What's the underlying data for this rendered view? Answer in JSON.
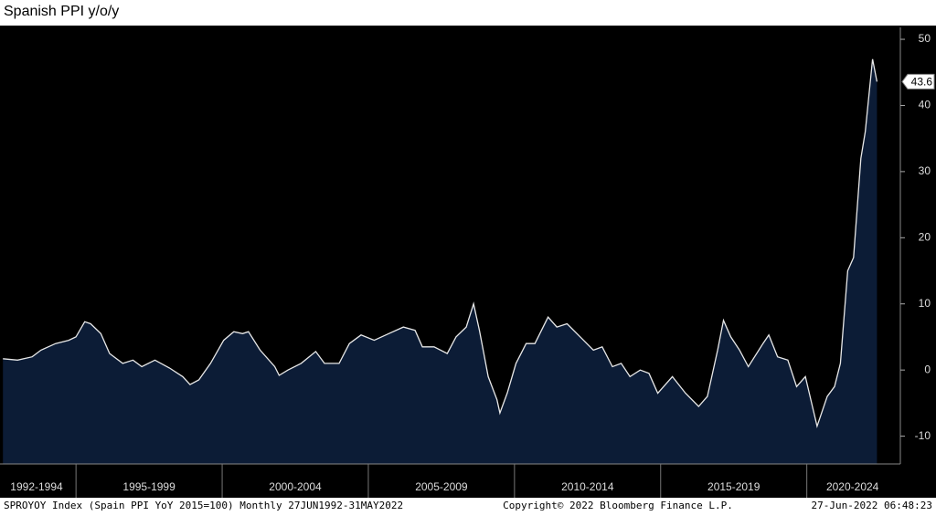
{
  "chart_data": {
    "type": "area",
    "title": "Spanish PPI y/o/y",
    "footer_left": "SPROYOY Index (Spain PPI YoY 2015=100)  Monthly 27JUN1992-31MAY2022",
    "footer_center": "Copyright© 2022 Bloomberg Finance L.P.",
    "footer_right": "27-Jun-2022 06:48:23",
    "x": [
      1992.5,
      1993.0,
      1993.5,
      1993.8,
      1994.3,
      1994.75,
      1995.0,
      1995.3,
      1995.5,
      1995.85,
      1996.15,
      1996.6,
      1996.95,
      1997.25,
      1997.7,
      1998.2,
      1998.65,
      1998.9,
      1999.2,
      1999.6,
      2000.05,
      2000.4,
      2000.7,
      2000.9,
      2001.3,
      2001.8,
      2001.95,
      2002.25,
      2002.7,
      2003.2,
      2003.5,
      2004.0,
      2004.35,
      2004.75,
      2005.2,
      2005.7,
      2006.2,
      2006.6,
      2006.85,
      2007.25,
      2007.7,
      2008.0,
      2008.35,
      2008.6,
      2008.8,
      2009.1,
      2009.4,
      2009.5,
      2009.75,
      2010.05,
      2010.4,
      2010.7,
      2011.15,
      2011.45,
      2011.8,
      2012.25,
      2012.7,
      2013.0,
      2013.35,
      2013.65,
      2013.95,
      2014.3,
      2014.6,
      2014.9,
      2015.4,
      2015.85,
      2016.3,
      2016.6,
      2016.95,
      2017.15,
      2017.4,
      2017.7,
      2018.0,
      2018.5,
      2018.7,
      2019.0,
      2019.35,
      2019.65,
      2019.95,
      2020.35,
      2020.7,
      2020.95,
      2021.15,
      2021.4,
      2021.6,
      2021.85,
      2022.0,
      2022.25,
      2022.4
    ],
    "series": [
      {
        "name": "SPROYOY Index",
        "color": "#e8e8e8",
        "fill": "#0c1c36",
        "values": [
          1.7,
          1.5,
          2.0,
          3.0,
          4.0,
          4.5,
          5.0,
          7.3,
          7.0,
          5.5,
          2.5,
          1.0,
          1.5,
          0.5,
          1.5,
          0.3,
          -1.0,
          -2.2,
          -1.5,
          1.0,
          4.5,
          5.8,
          5.5,
          5.8,
          3.0,
          0.5,
          -0.8,
          0.0,
          1.0,
          2.8,
          1.0,
          1.0,
          4.0,
          5.3,
          4.5,
          5.5,
          6.5,
          6.0,
          3.5,
          3.5,
          2.5,
          5.0,
          6.5,
          10.0,
          6.0,
          -1.0,
          -4.5,
          -6.5,
          -3.5,
          1.0,
          4.0,
          4.0,
          8.0,
          6.5,
          7.0,
          5.0,
          3.0,
          3.5,
          0.5,
          1.0,
          -1.0,
          0.0,
          -0.5,
          -3.5,
          -1.0,
          -3.5,
          -5.5,
          -4.0,
          3.0,
          7.5,
          5.0,
          3.0,
          0.5,
          4.0,
          5.3,
          2.0,
          1.5,
          -2.5,
          -1.0,
          -8.5,
          -4.0,
          -2.5,
          1.0,
          15.0,
          17.0,
          32.0,
          36.0,
          47.0,
          43.6
        ]
      }
    ],
    "last_value_label": "43.6",
    "xlim": [
      1992.4,
      2023.2
    ],
    "xticks": [
      1995,
      2000,
      2005,
      2010,
      2015,
      2020
    ],
    "x_period_labels": [
      "1992-1994",
      "1995-1999",
      "2000-2004",
      "2005-2009",
      "2010-2014",
      "2015-2019",
      "2020-2024"
    ],
    "ylim": [
      -14.2,
      51.8
    ],
    "yticks": [
      -10,
      0,
      10,
      20,
      30,
      40,
      50
    ]
  }
}
